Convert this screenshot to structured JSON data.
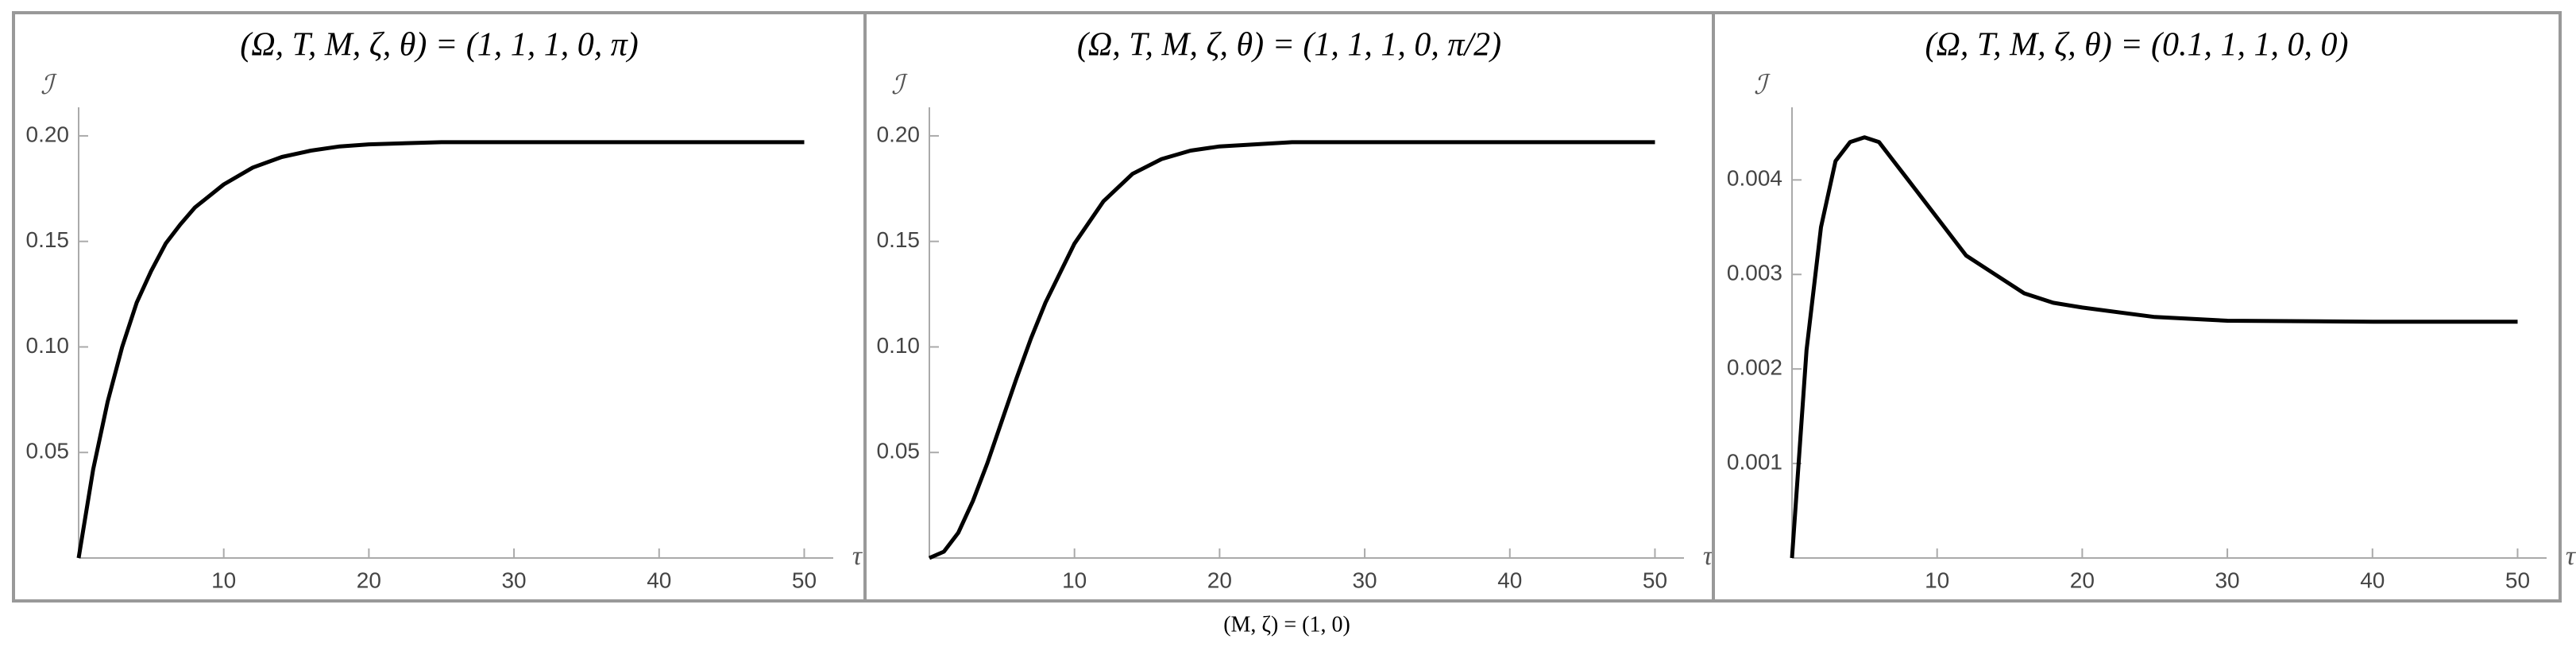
{
  "chart_data": [
    {
      "type": "line",
      "title": "(Ω, T, M, ζ, θ) = (1, 1, 1, 0, π)",
      "xlabel": "τ",
      "ylabel": "ℐ",
      "x": [
        0,
        1,
        2,
        3,
        4,
        5,
        6,
        7,
        8,
        10,
        12,
        14,
        16,
        18,
        20,
        25,
        30,
        40,
        50
      ],
      "series": [
        {
          "color": "#000000",
          "values": [
            0,
            0.042,
            0.074,
            0.1,
            0.121,
            0.136,
            0.149,
            0.158,
            0.166,
            0.177,
            0.185,
            0.19,
            0.193,
            0.195,
            0.196,
            0.197,
            0.197,
            0.197,
            0.197
          ]
        }
      ],
      "xlim": [
        0,
        52
      ],
      "ylim": [
        0,
        0.206
      ],
      "xticks": [
        10,
        20,
        30,
        40,
        50
      ],
      "yticks": [
        0.05,
        {
          "value": 0.1,
          "label": "0.10"
        },
        0.15,
        {
          "value": 0.2,
          "label": "0.20"
        }
      ]
    },
    {
      "type": "line",
      "title": "(Ω, T, M, ζ, θ) = (1, 1, 1, 0, π/2)",
      "xlabel": "τ",
      "ylabel": "ℐ",
      "x": [
        0,
        1,
        2,
        3,
        4,
        5,
        6,
        7,
        8,
        10,
        12,
        14,
        16,
        18,
        20,
        25,
        30,
        40,
        50
      ],
      "series": [
        {
          "color": "#000000",
          "values": [
            0,
            0.003,
            0.012,
            0.027,
            0.045,
            0.065,
            0.085,
            0.104,
            0.121,
            0.149,
            0.169,
            0.182,
            0.189,
            0.193,
            0.195,
            0.197,
            0.197,
            0.197,
            0.197
          ]
        }
      ],
      "xlim": [
        0,
        52
      ],
      "ylim": [
        0,
        0.206
      ],
      "xticks": [
        10,
        20,
        30,
        40,
        50
      ],
      "yticks": [
        0.05,
        {
          "value": 0.1,
          "label": "0.10"
        },
        0.15,
        {
          "value": 0.2,
          "label": "0.20"
        }
      ]
    },
    {
      "type": "line",
      "title": "(Ω, T, M, ζ, θ) = (0.1, 1, 1, 0, 0)",
      "xlabel": "τ",
      "ylabel": "ℐ",
      "x": [
        0,
        1,
        2,
        3,
        4,
        5,
        6,
        7,
        8,
        10,
        12,
        14,
        16,
        18,
        20,
        25,
        30,
        40,
        50
      ],
      "series": [
        {
          "color": "#000000",
          "values": [
            0,
            0.0022,
            0.0035,
            0.0042,
            0.0044,
            0.00445,
            0.0044,
            0.0042,
            0.004,
            0.0036,
            0.0032,
            0.003,
            0.0028,
            0.0027,
            0.00265,
            0.00255,
            0.00251,
            0.0025,
            0.0025
          ]
        }
      ],
      "xlim": [
        0,
        52
      ],
      "ylim": [
        0,
        0.0046
      ],
      "xticks": [
        10,
        20,
        30,
        40,
        50
      ],
      "yticks": [
        0.001,
        0.002,
        0.003,
        0.004
      ]
    }
  ],
  "caption": "(M, ζ) = (1, 0)"
}
